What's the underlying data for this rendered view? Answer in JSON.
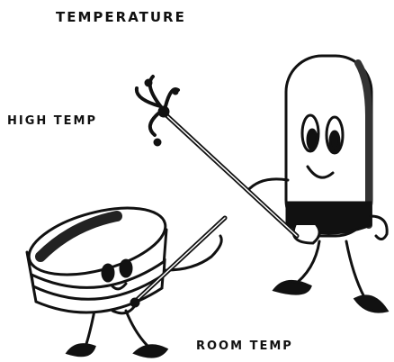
{
  "title": "TEMPERATURE",
  "labels": {
    "high": "HIGH TEMP",
    "room": "ROOM TEMP"
  }
}
